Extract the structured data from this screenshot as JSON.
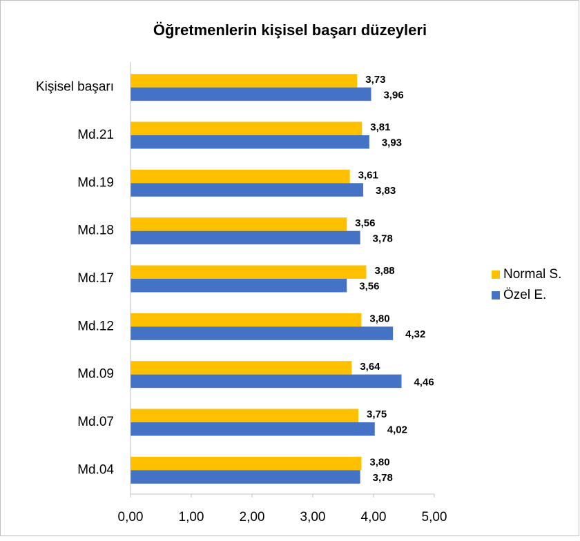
{
  "chart_data": {
    "type": "hbar",
    "title": "Öğretmenlerin kişisel başarı düzeyleri",
    "categories": [
      "Kişisel başarı",
      "Md.21",
      "Md.19",
      "Md.18",
      "Md.17",
      "Md.12",
      "Md.09",
      "Md.07",
      "Md.04"
    ],
    "series": [
      {
        "name": "Normal S.",
        "color": "#ffc000",
        "values": [
          3.73,
          3.81,
          3.61,
          3.56,
          3.88,
          3.8,
          3.64,
          3.75,
          3.8
        ],
        "value_labels": [
          "3,73",
          "3,81",
          "3,61",
          "3,56",
          "3,88",
          "3,80",
          "3,64",
          "3,75",
          "3,80"
        ]
      },
      {
        "name": "Özel E.",
        "color": "#4472c4",
        "values": [
          3.96,
          3.93,
          3.83,
          3.78,
          3.56,
          4.32,
          4.46,
          4.02,
          3.78
        ],
        "value_labels": [
          "3,96",
          "3,93",
          "3,83",
          "3,78",
          "3,56",
          "4,32",
          "4,46",
          "4,02",
          "3,78"
        ]
      }
    ],
    "xlim": [
      0,
      5
    ],
    "xticks": [
      {
        "value": 0,
        "label": "0,00"
      },
      {
        "value": 1,
        "label": "1,00"
      },
      {
        "value": 2,
        "label": "2,00"
      },
      {
        "value": 3,
        "label": "3,00"
      },
      {
        "value": 4,
        "label": "4,00"
      },
      {
        "value": 5,
        "label": "5,00"
      }
    ],
    "legend": "right"
  }
}
